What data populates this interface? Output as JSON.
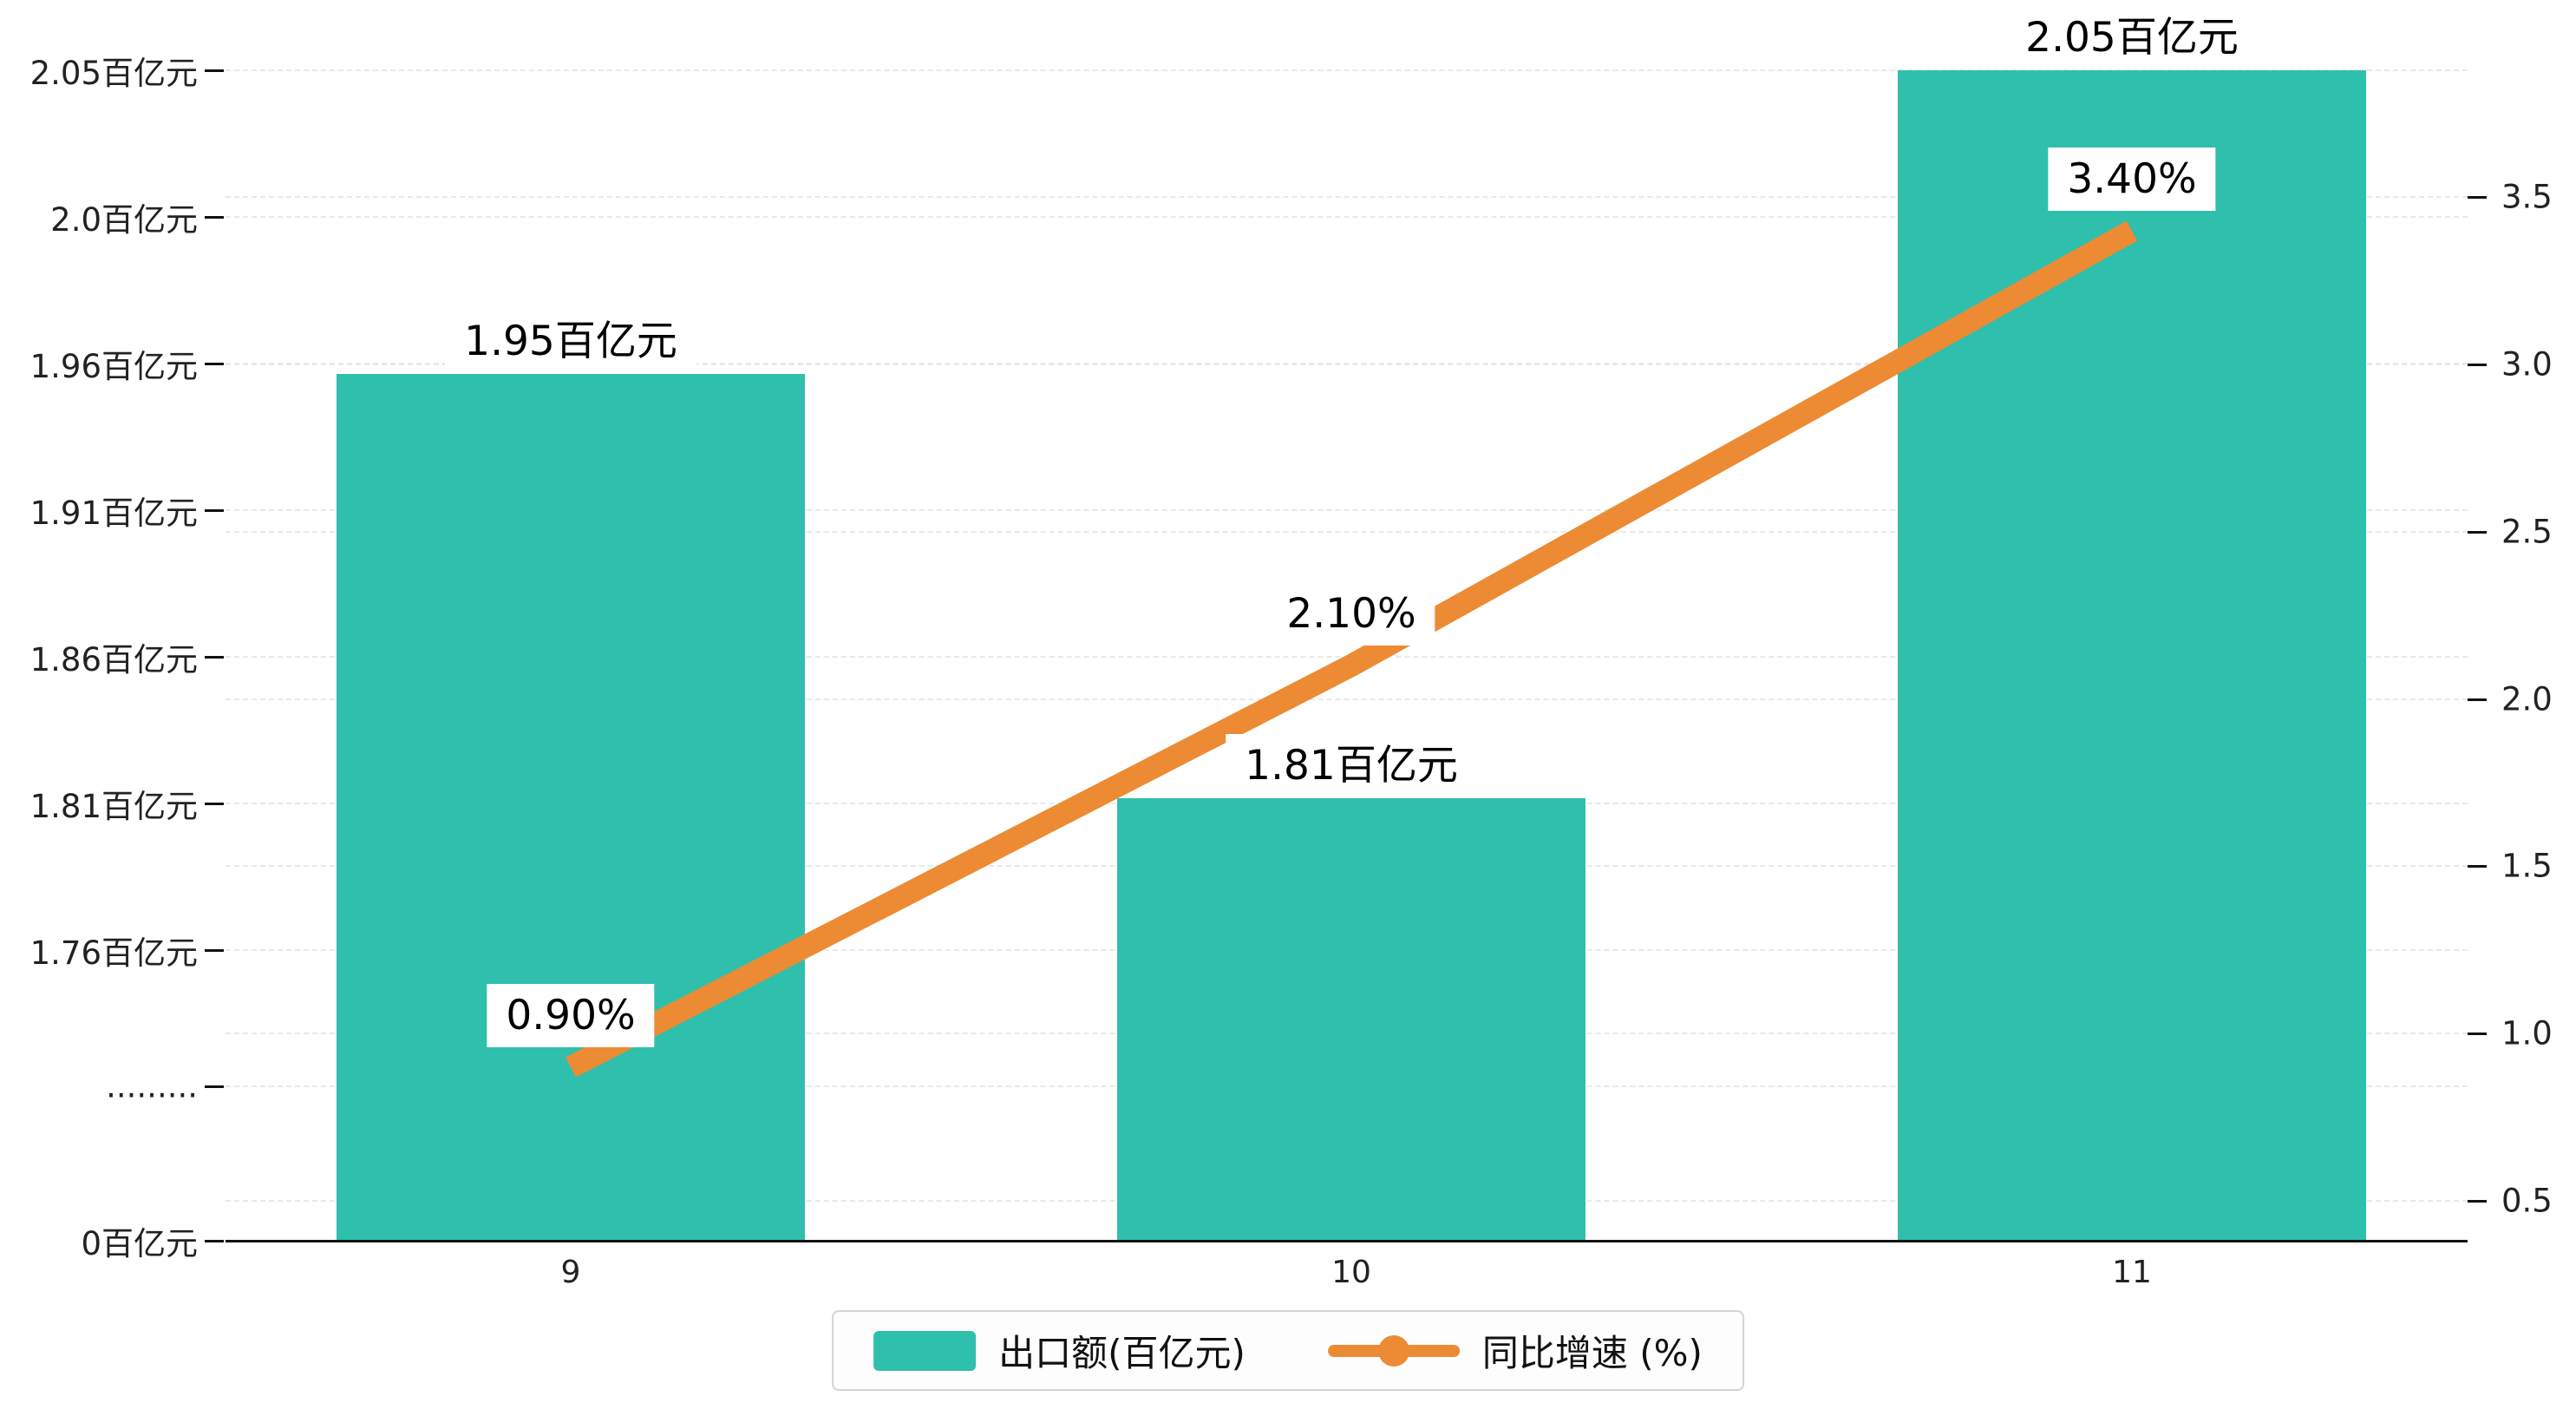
{
  "chart_data": {
    "type": "bar",
    "combo": "bar+line",
    "categories": [
      "9",
      "10",
      "11"
    ],
    "series": [
      {
        "name": "出口额(百亿元)",
        "type": "bar",
        "axis": "left",
        "values": [
          1.95,
          1.81,
          2.05
        ],
        "labels": [
          "1.95百亿元",
          "1.81百亿元",
          "2.05百亿元"
        ]
      },
      {
        "name": "同比增速 (%)",
        "type": "line",
        "axis": "right",
        "values": [
          0.9,
          2.1,
          3.4
        ],
        "labels": [
          "0.90%",
          "2.10%",
          "3.40%"
        ]
      }
    ],
    "left_axis": {
      "tick_labels": [
        "2.05百亿元",
        "2.0百亿元",
        "1.96百亿元",
        "1.91百亿元",
        "1.86百亿元",
        "1.81百亿元",
        "1.76百亿元",
        ".........",
        "0百亿元"
      ],
      "broken": true,
      "upper_range": [
        1.76,
        2.05
      ]
    },
    "right_axis": {
      "tick_labels": [
        "3.5",
        "3.0",
        "2.5",
        "2.0",
        "1.5",
        "1.0",
        "0.5"
      ],
      "min": 0.5,
      "max": 3.5
    },
    "legend": {
      "items": [
        "出口额(百亿元)",
        "同比增速 (%)"
      ],
      "position": "bottom"
    },
    "grid": "dashed-horizontal",
    "title": ""
  },
  "colors": {
    "bar": "#2fbfad",
    "line": "#ec8b33",
    "grid": "#e9e9e9",
    "axis": "#111111",
    "label_bg": "#ffffff",
    "text": "#111111"
  }
}
